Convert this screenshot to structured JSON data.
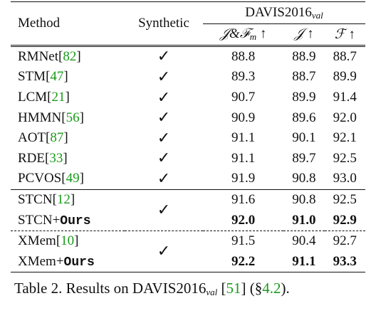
{
  "table": {
    "header": {
      "method": "Method",
      "synthetic": "Synthetic",
      "group": {
        "text": "DAVIS2016",
        "sub": "val"
      },
      "metrics": [
        {
          "text": "𝒥&ℱ",
          "sub": "m",
          "arrow": "↑"
        },
        {
          "text": "𝒥",
          "arrow": "↑"
        },
        {
          "text": "ℱ",
          "arrow": "↑"
        }
      ]
    },
    "groups": [
      {
        "separator": "double",
        "rows": [
          {
            "method": [
              {
                "t": "RMNet["
              },
              {
                "t": "82",
                "style": "link"
              },
              {
                "t": "]"
              }
            ],
            "synthetic": "✓",
            "values": [
              "88.8",
              "88.9",
              "88.7"
            ]
          },
          {
            "method": [
              {
                "t": "STM["
              },
              {
                "t": "47",
                "style": "link"
              },
              {
                "t": "]"
              }
            ],
            "synthetic": "✓",
            "values": [
              "89.3",
              "88.7",
              "89.9"
            ]
          },
          {
            "method": [
              {
                "t": "LCM["
              },
              {
                "t": "21",
                "style": "link"
              },
              {
                "t": "]"
              }
            ],
            "synthetic": "✓",
            "values": [
              "90.7",
              "89.9",
              "91.4"
            ]
          },
          {
            "method": [
              {
                "t": "HMMN["
              },
              {
                "t": "56",
                "style": "link"
              },
              {
                "t": "]"
              }
            ],
            "synthetic": "✓",
            "values": [
              "90.9",
              "89.6",
              "92.0"
            ]
          },
          {
            "method": [
              {
                "t": "AOT["
              },
              {
                "t": "87",
                "style": "link"
              },
              {
                "t": "]"
              }
            ],
            "synthetic": "✓",
            "values": [
              "91.1",
              "90.1",
              "92.1"
            ]
          },
          {
            "method": [
              {
                "t": "RDE["
              },
              {
                "t": "33",
                "style": "link"
              },
              {
                "t": "]"
              }
            ],
            "synthetic": "✓",
            "values": [
              "91.1",
              "89.7",
              "92.5"
            ]
          },
          {
            "method": [
              {
                "t": "PCVOS["
              },
              {
                "t": "49",
                "style": "link"
              },
              {
                "t": "]"
              }
            ],
            "synthetic": "✓",
            "values": [
              "91.9",
              "90.8",
              "93.0"
            ]
          }
        ]
      },
      {
        "separator": "solid",
        "synthetic": "✓",
        "rows": [
          {
            "method": [
              {
                "t": "STCN["
              },
              {
                "t": "12",
                "style": "link"
              },
              {
                "t": "]"
              }
            ],
            "values": [
              "91.6",
              "90.8",
              "92.5"
            ]
          },
          {
            "method": [
              {
                "t": "STCN+"
              },
              {
                "t": "Ours",
                "style": "mono"
              }
            ],
            "values": [
              "92.0",
              "91.0",
              "92.9"
            ],
            "bold": true
          }
        ]
      },
      {
        "separator": "dashed",
        "synthetic": "✓",
        "rows": [
          {
            "method": [
              {
                "t": "XMem["
              },
              {
                "t": "10",
                "style": "link"
              },
              {
                "t": "]"
              }
            ],
            "values": [
              "91.5",
              "90.4",
              "92.7"
            ]
          },
          {
            "method": [
              {
                "t": "XMem+"
              },
              {
                "t": "Ours",
                "style": "mono"
              }
            ],
            "values": [
              "92.2",
              "91.1",
              "93.3"
            ],
            "bold": true
          }
        ]
      }
    ]
  },
  "caption": [
    {
      "t": "Table 2. Results on DAVIS2016"
    },
    {
      "t": "val",
      "style": "sub"
    },
    {
      "t": " ["
    },
    {
      "t": "51",
      "style": "link"
    },
    {
      "t": "] (§"
    },
    {
      "t": "4.2",
      "style": "link"
    },
    {
      "t": ")."
    }
  ]
}
